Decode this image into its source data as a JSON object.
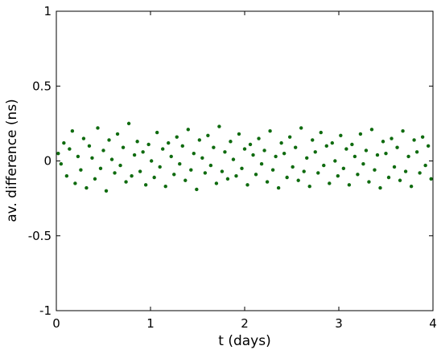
{
  "chart_data": {
    "type": "scatter",
    "title": "",
    "xlabel": "t (days)",
    "ylabel": "av. difference  (ns)",
    "xlim": [
      0,
      4
    ],
    "ylim": [
      -1,
      1
    ],
    "xticks": [
      0,
      1,
      2,
      3,
      4
    ],
    "xtick_labels": [
      "0",
      "1",
      "2",
      "3",
      "4"
    ],
    "yticks": [
      -1,
      -0.5,
      0,
      0.5,
      1
    ],
    "ytick_labels": [
      "-1",
      "-0.5",
      "0",
      "0.5",
      "1"
    ],
    "grid": false,
    "legend": "none",
    "point_color": "#0f6b0f",
    "series": [
      {
        "x": [
          0.02,
          0.05,
          0.08,
          0.11,
          0.14,
          0.17,
          0.2,
          0.23,
          0.26,
          0.29,
          0.32,
          0.35,
          0.38,
          0.41,
          0.44,
          0.47,
          0.5,
          0.53,
          0.56,
          0.59,
          0.62,
          0.65,
          0.68,
          0.71,
          0.74,
          0.77,
          0.8,
          0.83,
          0.86,
          0.89,
          0.92,
          0.95,
          0.98,
          1.01,
          1.04,
          1.07,
          1.1,
          1.13,
          1.16,
          1.19,
          1.22,
          1.25,
          1.28,
          1.31,
          1.34,
          1.37,
          1.4,
          1.43,
          1.46,
          1.49,
          1.52,
          1.55,
          1.58,
          1.61,
          1.64,
          1.67,
          1.7,
          1.73,
          1.76,
          1.79,
          1.82,
          1.85,
          1.88,
          1.91,
          1.94,
          1.97,
          2.0,
          2.03,
          2.06,
          2.09,
          2.12,
          2.15,
          2.18,
          2.21,
          2.24,
          2.27,
          2.3,
          2.33,
          2.36,
          2.39,
          2.42,
          2.45,
          2.48,
          2.51,
          2.54,
          2.57,
          2.6,
          2.63,
          2.66,
          2.69,
          2.72,
          2.75,
          2.78,
          2.81,
          2.84,
          2.87,
          2.9,
          2.93,
          2.96,
          2.99,
          3.02,
          3.05,
          3.08,
          3.11,
          3.14,
          3.17,
          3.2,
          3.23,
          3.26,
          3.29,
          3.32,
          3.35,
          3.38,
          3.41,
          3.44,
          3.47,
          3.5,
          3.53,
          3.56,
          3.59,
          3.62,
          3.65,
          3.68,
          3.71,
          3.74,
          3.77,
          3.8,
          3.83,
          3.86,
          3.89,
          3.92,
          3.95,
          3.98
        ],
        "y": [
          0.05,
          -0.02,
          0.12,
          -0.1,
          0.08,
          0.2,
          -0.15,
          0.03,
          -0.06,
          0.15,
          -0.18,
          0.1,
          0.02,
          -0.12,
          0.22,
          -0.05,
          0.07,
          -0.2,
          0.14,
          0.01,
          -0.08,
          0.18,
          -0.03,
          0.09,
          -0.14,
          0.25,
          -0.1,
          0.04,
          0.13,
          -0.07,
          0.06,
          -0.16,
          0.11,
          0.0,
          -0.11,
          0.19,
          -0.04,
          0.08,
          -0.17,
          0.12,
          0.03,
          -0.09,
          0.16,
          -0.02,
          0.1,
          -0.13,
          0.21,
          -0.06,
          0.05,
          -0.19,
          0.14,
          0.02,
          -0.08,
          0.17,
          -0.03,
          0.09,
          -0.15,
          0.23,
          -0.07,
          0.06,
          -0.12,
          0.13,
          0.01,
          -0.1,
          0.18,
          -0.05,
          0.08,
          -0.16,
          0.11,
          0.04,
          -0.09,
          0.15,
          -0.02,
          0.07,
          -0.14,
          0.2,
          -0.06,
          0.03,
          -0.18,
          0.12,
          0.05,
          -0.11,
          0.16,
          -0.04,
          0.09,
          -0.13,
          0.22,
          -0.07,
          0.02,
          -0.17,
          0.14,
          0.06,
          -0.08,
          0.19,
          -0.03,
          0.1,
          -0.15,
          0.12,
          0.0,
          -0.1,
          0.17,
          -0.05,
          0.08,
          -0.16,
          0.11,
          0.03,
          -0.09,
          0.18,
          -0.02,
          0.07,
          -0.14,
          0.21,
          -0.06,
          0.04,
          -0.18,
          0.13,
          0.05,
          -0.11,
          0.15,
          -0.04,
          0.09,
          -0.13,
          0.2,
          -0.07,
          0.03,
          -0.17,
          0.14,
          0.06,
          -0.08,
          0.16,
          -0.03,
          0.1,
          -0.12
        ]
      }
    ]
  }
}
